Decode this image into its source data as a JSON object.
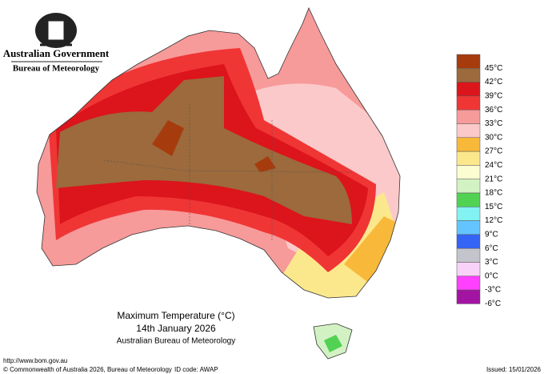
{
  "header": {
    "government": "Australian Government",
    "bureau": "Bureau of Meteorology"
  },
  "map": {
    "title": "Maximum Temperature (°C)",
    "date": "14th January 2026",
    "source": "Australian Bureau of Meteorology"
  },
  "legend": {
    "colors": [
      "#a63c0e",
      "#9c6a3c",
      "#dc141c",
      "#f03535",
      "#f79a9a",
      "#fbc9c9",
      "#f8b93a",
      "#fce88c",
      "#fdfdd2",
      "#d3f2c4",
      "#52d252",
      "#82f2f2",
      "#64c4ff",
      "#3464f4",
      "#c4c4cc",
      "#f8d2f8",
      "#ff40ff",
      "#a314a3"
    ],
    "labels": [
      "45°C",
      "42°C",
      "39°C",
      "36°C",
      "33°C",
      "30°C",
      "27°C",
      "24°C",
      "21°C",
      "18°C",
      "15°C",
      "12°C",
      "9°C",
      "6°C",
      "3°C",
      "0°C",
      "-3°C",
      "-6°C"
    ]
  },
  "footer": {
    "url": "http://www.bom.gov.au",
    "copyright": "© Commonwealth of Australia 2026, Bureau of Meteorology",
    "id_code": "ID code: AWAP",
    "issued": "Issued: 15/01/2026"
  }
}
